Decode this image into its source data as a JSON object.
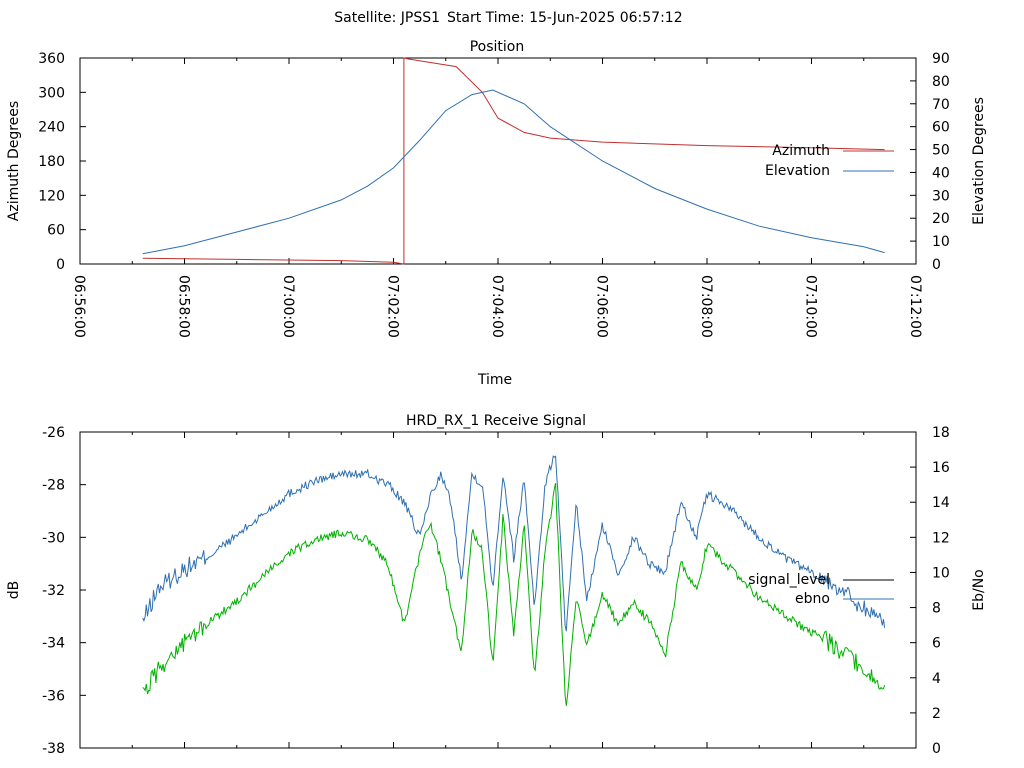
{
  "header": {
    "satellite_label": "Satellite: JPSS1",
    "start_time_label": "Start Time: 15-Jun-2025 06:57:12"
  },
  "chart_data": [
    {
      "type": "line",
      "title": "Position",
      "xlabel": "Time",
      "ylabel": "Azimuth Degrees",
      "y2label": "Elevation Degrees",
      "xlim_minutes_after_0656": [
        0,
        16
      ],
      "ylim": [
        0,
        360
      ],
      "y2lim": [
        0,
        90
      ],
      "x_tick_labels": [
        "06:56:00",
        "06:58:00",
        "07:00:00",
        "07:02:00",
        "07:04:00",
        "07:06:00",
        "07:08:00",
        "07:10:00",
        "07:12:00"
      ],
      "y_tick_labels": [
        "0",
        "60",
        "120",
        "180",
        "240",
        "300",
        "360"
      ],
      "y2_tick_labels": [
        "0",
        "10",
        "20",
        "30",
        "40",
        "50",
        "60",
        "70",
        "80",
        "90"
      ],
      "legend_position": "right",
      "grid": false,
      "series": [
        {
          "name": "Azimuth",
          "color": "#c03030",
          "axis": "left",
          "x": [
            1.2,
            3.0,
            5.0,
            6.0,
            6.2,
            6.2,
            6.3,
            7.2,
            7.7,
            8.0,
            8.5,
            9.0,
            10.0,
            12.0,
            14.0,
            15.4
          ],
          "y": [
            10,
            8,
            6,
            3,
            0,
            360,
            358,
            345,
            300,
            255,
            230,
            220,
            213,
            207,
            203,
            200
          ]
        },
        {
          "name": "Elevation",
          "color": "#3070b0",
          "axis": "right",
          "x": [
            1.2,
            2.0,
            3.0,
            4.0,
            5.0,
            5.5,
            6.0,
            6.5,
            7.0,
            7.5,
            7.9,
            8.5,
            9.0,
            10.0,
            11.0,
            12.0,
            13.0,
            14.0,
            15.0,
            15.4
          ],
          "y": [
            4.5,
            8,
            14,
            20,
            28,
            34,
            42,
            54,
            67,
            74,
            76,
            70,
            60,
            45,
            33,
            24,
            16.5,
            11.5,
            7.5,
            5
          ]
        }
      ]
    },
    {
      "type": "line",
      "title": "HRD_RX_1 Receive Signal",
      "xlabel": "",
      "ylabel": "dB",
      "y2label": "Eb/No",
      "xlim_minutes_after_0656": [
        0,
        16
      ],
      "ylim": [
        -38,
        -26
      ],
      "y2lim": [
        0,
        18
      ],
      "y_tick_labels": [
        "-38",
        "-36",
        "-34",
        "-32",
        "-30",
        "-28",
        "-26"
      ],
      "y2_tick_labels": [
        "0",
        "2",
        "4",
        "6",
        "8",
        "10",
        "12",
        "14",
        "16",
        "18"
      ],
      "legend_position": "right",
      "grid": false,
      "series": [
        {
          "name": "signal_level",
          "color": "#000000",
          "axis": "left",
          "x": [],
          "y": []
        },
        {
          "name": "ebno",
          "color": "#3070b0",
          "axis": "right",
          "x": [
            1.2,
            1.5,
            2.0,
            2.5,
            3.0,
            3.5,
            4.0,
            4.5,
            5.0,
            5.5,
            5.9,
            6.2,
            6.5,
            6.7,
            6.9,
            7.1,
            7.3,
            7.5,
            7.7,
            7.9,
            8.1,
            8.3,
            8.5,
            8.7,
            8.9,
            9.1,
            9.3,
            9.5,
            9.7,
            10.0,
            10.3,
            10.6,
            10.9,
            11.2,
            11.5,
            11.8,
            12.0,
            12.5,
            13.0,
            13.5,
            14.0,
            14.5,
            15.0,
            15.4
          ],
          "y": [
            7.2,
            9.1,
            10.2,
            11.0,
            12.1,
            13.3,
            14.5,
            15.2,
            15.6,
            15.6,
            15.0,
            14.0,
            12.0,
            14.3,
            15.6,
            14.0,
            9.6,
            15.6,
            15.0,
            9.1,
            15.7,
            10.8,
            15.4,
            8.0,
            15.0,
            16.9,
            6.4,
            13.9,
            8.4,
            12.7,
            9.9,
            12.0,
            10.5,
            10.0,
            14.0,
            12.0,
            14.5,
            13.5,
            12.0,
            10.8,
            10.0,
            9.2,
            8.0,
            7.2
          ]
        },
        {
          "name": "",
          "color": "#00b000",
          "axis": "left",
          "x": [
            1.2,
            1.5,
            2.0,
            2.5,
            3.0,
            3.5,
            4.0,
            4.5,
            5.0,
            5.5,
            5.9,
            6.2,
            6.5,
            6.7,
            6.9,
            7.1,
            7.3,
            7.5,
            7.7,
            7.9,
            8.1,
            8.3,
            8.5,
            8.7,
            8.9,
            9.1,
            9.3,
            9.5,
            9.7,
            10.0,
            10.3,
            10.6,
            10.9,
            11.2,
            11.5,
            11.8,
            12.0,
            12.5,
            13.0,
            13.5,
            14.0,
            14.5,
            15.0,
            15.4
          ],
          "y": [
            -36.0,
            -35.0,
            -34.0,
            -33.2,
            -32.4,
            -31.5,
            -30.6,
            -30.1,
            -29.8,
            -30.1,
            -31.0,
            -33.3,
            -30.7,
            -29.4,
            -30.8,
            -32.6,
            -34.5,
            -29.7,
            -30.5,
            -34.9,
            -29.1,
            -33.8,
            -29.5,
            -35.4,
            -30.5,
            -28.0,
            -36.7,
            -32.2,
            -34.1,
            -32.2,
            -33.3,
            -32.5,
            -33.2,
            -34.5,
            -31.0,
            -32.0,
            -30.3,
            -31.3,
            -32.3,
            -33.0,
            -33.6,
            -34.2,
            -35.0,
            -35.8
          ]
        }
      ]
    }
  ]
}
